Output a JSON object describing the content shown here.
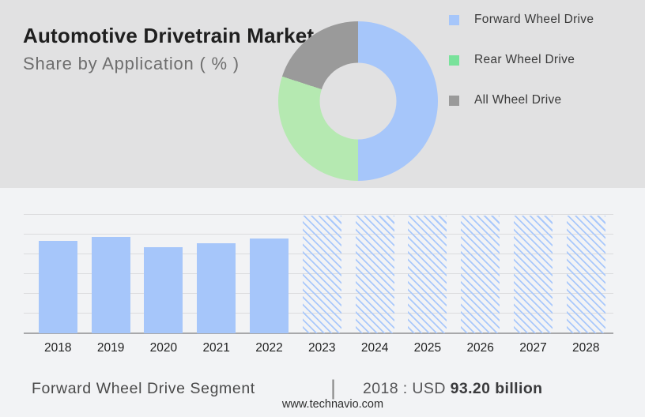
{
  "header": {
    "title": "Automotive Drivetrain Market",
    "subtitle": "Share by Application ( % )"
  },
  "footer": {
    "segment_label": "Forward Wheel Drive Segment",
    "separator": "|",
    "value_prefix": "2018 : USD ",
    "value_bold": "93.20 billion",
    "website": "www.technavio.com"
  },
  "colors": {
    "hero_background": "#e1e1e2",
    "section_background": "#f2f3f5",
    "primary_blue": "#a6c6fa",
    "donut_green": "#b5e9b1",
    "legend_green": "#79e29b",
    "neutral_gray": "#9a9a9a",
    "gridline": "#dcdcde",
    "axis": "#a8a8aa"
  },
  "chart_data": [
    {
      "type": "pie",
      "subtype": "donut",
      "title": "Automotive Drivetrain Market Share by Application ( % )",
      "legend_position": "right",
      "series": [
        {
          "name": "Forward Wheel Drive",
          "value": 50,
          "donut_color": "#a6c6fa",
          "legend_color": "#a6c6fa"
        },
        {
          "name": "Rear Wheel Drive",
          "value": 30,
          "donut_color": "#b5e9b1",
          "legend_color": "#79e29b"
        },
        {
          "name": "All Wheel Drive",
          "value": 20,
          "donut_color": "#9a9a9a",
          "legend_color": "#9a9a9a"
        }
      ]
    },
    {
      "type": "bar",
      "categories": [
        "2018",
        "2019",
        "2020",
        "2021",
        "2022",
        "2023",
        "2024",
        "2025",
        "2026",
        "2027",
        "2028"
      ],
      "values": [
        93.2,
        97.5,
        87.0,
        91.0,
        95.3,
        null,
        null,
        null,
        null,
        null,
        null
      ],
      "forecast_years": [
        "2023",
        "2024",
        "2025",
        "2026",
        "2027",
        "2028"
      ],
      "forecast_style": "diagonal-hatch",
      "unit": "USD billion",
      "reference_point": {
        "year": "2018",
        "label": "2018 : USD 93.20 billion"
      },
      "ylim": [
        0,
        120
      ],
      "gridline_step": 20,
      "grid": true,
      "bar_color": "#a6c6fa",
      "xlabel": "",
      "ylabel": ""
    }
  ]
}
